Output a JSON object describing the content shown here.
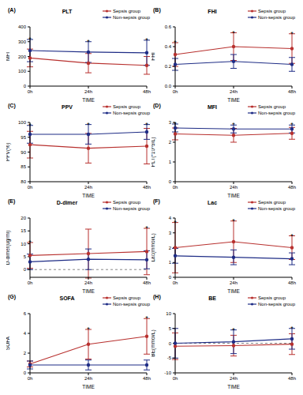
{
  "chart_data": [
    {
      "label": "(A)",
      "type": "line",
      "title": "PLT",
      "x_label": "TIME",
      "y_label": "MFI",
      "categories": [
        "0h",
        "24h",
        "48h"
      ],
      "series": [
        {
          "name": "Sepsis group",
          "color": "#b8312f",
          "marker": "circle",
          "values": [
            190,
            155,
            140
          ],
          "errors": [
            60,
            65,
            60
          ]
        },
        {
          "name": "Non-sepsis group",
          "color": "#1f2d86",
          "marker": "circle",
          "values": [
            240,
            230,
            225
          ],
          "errors": [
            75,
            70,
            85
          ]
        }
      ],
      "ylim": [
        0,
        400
      ],
      "yticks": [
        0,
        100,
        200,
        300,
        400
      ],
      "annotations": [
        "*",
        "*",
        "*"
      ],
      "grid": false,
      "legend": "upper right"
    },
    {
      "label": "(B)",
      "type": "line",
      "title": "FHI",
      "x_label": "TIME",
      "y_label": "FHI",
      "categories": [
        "0h",
        "24h",
        "48h"
      ],
      "series": [
        {
          "name": "Sepsis group",
          "color": "#b8312f",
          "marker": "circle",
          "values": [
            0.32,
            0.4,
            0.38
          ],
          "errors": [
            0.12,
            0.14,
            0.15
          ]
        },
        {
          "name": "Non-sepsis group",
          "color": "#1f2d86",
          "marker": "circle",
          "values": [
            0.22,
            0.25,
            0.22
          ],
          "errors": [
            0.06,
            0.07,
            0.07
          ]
        }
      ],
      "ylim": [
        0,
        0.6
      ],
      "yticks": [
        {
          "value": 0,
          "label": "0.0"
        },
        0.2,
        0.4,
        0.6
      ],
      "annotations": [
        "*",
        "*",
        "*"
      ],
      "grid": false,
      "legend": "upper right"
    },
    {
      "label": "(C)",
      "type": "line",
      "title": "PPV",
      "x_label": "TIME",
      "y_label": "PPV(%)",
      "categories": [
        "0h",
        "24h",
        "48h"
      ],
      "series": [
        {
          "name": "Sepsis group",
          "color": "#b8312f",
          "marker": "circle",
          "values": [
            92.5,
            91.3,
            92
          ],
          "errors": [
            4.5,
            5,
            6
          ]
        },
        {
          "name": "Non-sepsis group",
          "color": "#1f2d86",
          "marker": "circle",
          "values": [
            96,
            96,
            96.8
          ],
          "errors": [
            3,
            3.3,
            2.5
          ]
        }
      ],
      "ylim": [
        80,
        100
      ],
      "yticks": [
        80,
        85,
        90,
        95,
        100
      ],
      "annotations": [
        "*",
        "*",
        "*"
      ],
      "grid": false,
      "legend": "upper right"
    },
    {
      "label": "(D)",
      "type": "line",
      "title": "MFI",
      "x_label": "TIME",
      "y_label": "PLT(*10^9/L)",
      "categories": [
        "0h",
        "24h",
        "48h"
      ],
      "series": [
        {
          "name": "Sepsis group",
          "color": "#b8312f",
          "marker": "circle",
          "values": [
            2.42,
            2.35,
            2.45
          ],
          "errors": [
            0.3,
            0.35,
            0.3
          ]
        },
        {
          "name": "Non-sepsis group",
          "color": "#1f2d86",
          "marker": "circle",
          "values": [
            2.72,
            2.67,
            2.67
          ],
          "errors": [
            0.2,
            0.2,
            0.2
          ]
        }
      ],
      "ylim": [
        0,
        3
      ],
      "yticks": [
        0,
        1,
        2,
        3
      ],
      "annotations": [
        "*",
        "*",
        "*"
      ],
      "grid": false,
      "legend": "upper right"
    },
    {
      "label": "(E)",
      "type": "line",
      "title": "D-dimer",
      "x_label": "TIME",
      "y_label": "D-dimer(ug/ml)",
      "categories": [
        "0h",
        "24h",
        "48h"
      ],
      "series": [
        {
          "name": "Sepsis group",
          "color": "#b8312f",
          "marker": "circle",
          "values": [
            5.5,
            6.2,
            7
          ],
          "errors": [
            5,
            9.5,
            9
          ]
        },
        {
          "name": "Non-sepsis group",
          "color": "#1f2d86",
          "marker": "circle",
          "values": [
            3,
            4,
            3.8
          ],
          "errors": [
            3,
            4,
            3.5
          ]
        }
      ],
      "ylim": [
        -3,
        20
      ],
      "yticks": [
        0,
        5,
        10,
        15,
        20
      ],
      "reference_y": 0,
      "annotations": [
        "*",
        null,
        "*"
      ],
      "grid": false,
      "legend": "upper right"
    },
    {
      "label": "(F)",
      "type": "line",
      "title": "Lac",
      "x_label": "TIME",
      "y_label": "Lac(mmol/L)",
      "categories": [
        "0h",
        "24h",
        "48h"
      ],
      "series": [
        {
          "name": "Sepsis group",
          "color": "#b8312f",
          "marker": "circle",
          "values": [
            2.0,
            2.4,
            2.0
          ],
          "errors": [
            1.7,
            1.4,
            0.8
          ]
        },
        {
          "name": "Non-sepsis group",
          "color": "#1f2d86",
          "marker": "circle",
          "values": [
            1.45,
            1.35,
            1.25
          ],
          "errors": [
            0.5,
            0.5,
            0.4
          ]
        }
      ],
      "ylim": [
        0,
        4
      ],
      "yticks": [
        0,
        1,
        2,
        3,
        4
      ],
      "annotations": [
        "*",
        "*",
        "*"
      ],
      "grid": false,
      "legend": "upper right"
    },
    {
      "label": "(G)",
      "type": "line",
      "title": "SOFA",
      "x_label": "TIME",
      "y_label": "SOFA",
      "categories": [
        "0h",
        "24h",
        "48h"
      ],
      "series": [
        {
          "name": "Sepsis group",
          "color": "#b8312f",
          "marker": "circle",
          "values": [
            0.9,
            2.9,
            3.7
          ],
          "errors": [
            0.3,
            1.5,
            1.8
          ]
        },
        {
          "name": "Non-sepsis group",
          "color": "#1f2d86",
          "marker": "circle",
          "values": [
            0.8,
            0.8,
            0.8
          ],
          "errors": [
            0.4,
            0.5,
            0.5
          ]
        }
      ],
      "ylim": [
        0,
        6
      ],
      "yticks": [
        0,
        2,
        4,
        6
      ],
      "annotations": [
        null,
        "*",
        "*"
      ],
      "grid": false,
      "legend": "upper right"
    },
    {
      "label": "(H)",
      "type": "line",
      "title": "BE",
      "x_label": "TIME",
      "y_label": "BE(mmol/L)",
      "categories": [
        "0h",
        "24h",
        "48h"
      ],
      "series": [
        {
          "name": "Sepsis group",
          "color": "#b8312f",
          "marker": "circle",
          "values": [
            -1,
            -0.8,
            -0.3
          ],
          "errors": [
            4.5,
            3.5,
            3.5
          ]
        },
        {
          "name": "Non-sepsis group",
          "color": "#1f2d86",
          "marker": "circle",
          "values": [
            0,
            0.5,
            1.5
          ],
          "errors": [
            5,
            4,
            3.5
          ]
        }
      ],
      "ylim": [
        -10,
        10
      ],
      "yticks": [
        -10,
        -5,
        0,
        5,
        10
      ],
      "reference_y": 0,
      "annotations": [
        null,
        "*",
        "*"
      ],
      "grid": false,
      "legend": "upper right"
    }
  ]
}
